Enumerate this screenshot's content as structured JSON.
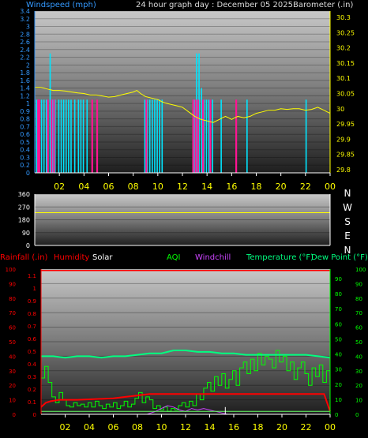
{
  "header": {
    "windspeed_label": "Windspeed (mph)",
    "title": "24 hour graph day : December 05 2025",
    "barometer_label": "Barometer (.in)"
  },
  "bottom_legend": {
    "rainfall": "Rainfall (.in)",
    "humidity": "Humidity",
    "solar": "Solar",
    "aqi": "AQI",
    "windchill": "Windchill",
    "temperature": "Temperature (°F)",
    "dewpoint": "Dew Point (°F)"
  },
  "colors": {
    "windspeed": "#00e6ff",
    "gust": "#ff1493",
    "barometer": "#ffff00",
    "direction": "#ffff00",
    "rain": "#ff0000",
    "humidity": "#ff0000",
    "solar": "#ffffff",
    "aqi": "#00ff00",
    "windchill": "#cc44ff",
    "temperature": "#00ff80",
    "dewpoint": "#66ff66",
    "axis_left_top": "#3399ff",
    "axis_right_top": "#ffff00",
    "axis_left_bottom": "#ff0000",
    "axis_right_bottom": "#00ff00"
  },
  "x_ticks": [
    "02",
    "04",
    "06",
    "08",
    "10",
    "12",
    "14",
    "16",
    "18",
    "20",
    "22",
    "00"
  ],
  "chart_data": [
    {
      "type": "bar",
      "name": "wind",
      "y_ticks_left": [
        "3.4",
        "3.2",
        "3",
        "2.8",
        "2.6",
        "2.4",
        "2.2",
        "2",
        "1.8",
        "1.6",
        "1.4",
        "1.2",
        "1",
        "0.9",
        "0.8",
        "0.7",
        "0.6",
        "0.5",
        "0.4",
        "0.3",
        "0.2",
        "0"
      ],
      "y_ticks_right": [
        "30.3",
        "30.25",
        "30.2",
        "30.15",
        "30.1",
        "30.05",
        "30",
        "29.95",
        "29.9",
        "29.85",
        "29.8"
      ],
      "ylim_left": [
        0,
        3.4
      ],
      "ylim_right": [
        29.8,
        30.3
      ],
      "xlim": [
        0,
        24
      ],
      "windspeed": [
        [
          0.1,
          1.1
        ],
        [
          0.2,
          1.1
        ],
        [
          0.5,
          1.1
        ],
        [
          0.7,
          1.1
        ],
        [
          0.9,
          1.1
        ],
        [
          1.2,
          2.3
        ],
        [
          1.4,
          1.1
        ],
        [
          1.6,
          1.1
        ],
        [
          1.9,
          1.1
        ],
        [
          2.1,
          1.1
        ],
        [
          2.3,
          1.1
        ],
        [
          2.5,
          1.1
        ],
        [
          2.7,
          1.1
        ],
        [
          2.9,
          1.1
        ],
        [
          3.2,
          1.1
        ],
        [
          3.5,
          1.1
        ],
        [
          3.7,
          1.1
        ],
        [
          3.9,
          1.1
        ],
        [
          4.2,
          1.1
        ],
        [
          8.9,
          1.1
        ],
        [
          9.1,
          1.1
        ],
        [
          9.3,
          1.1
        ],
        [
          9.5,
          1.1
        ],
        [
          9.7,
          1.1
        ],
        [
          9.9,
          1.1
        ],
        [
          10.1,
          1.1
        ],
        [
          10.3,
          1.1
        ],
        [
          12.9,
          1.1
        ],
        [
          13.1,
          2.3
        ],
        [
          13.3,
          2.3
        ],
        [
          13.5,
          1.4
        ],
        [
          13.7,
          1.1
        ],
        [
          13.9,
          1.1
        ],
        [
          14.1,
          1.1
        ],
        [
          14.4,
          1.1
        ],
        [
          15.1,
          1.1
        ],
        [
          17.2,
          1.1
        ],
        [
          22.0,
          1.1
        ]
      ],
      "gust": [
        [
          0.2,
          1.1
        ],
        [
          0.3,
          1.1
        ],
        [
          1.0,
          1.1
        ],
        [
          1.3,
          1.1
        ],
        [
          1.5,
          1.1
        ],
        [
          4.6,
          1.1
        ],
        [
          5.0,
          1.1
        ],
        [
          9.0,
          1.1
        ],
        [
          12.8,
          1.1
        ],
        [
          13.0,
          1.1
        ],
        [
          13.2,
          1.1
        ],
        [
          13.6,
          1.1
        ],
        [
          14.2,
          1.1
        ],
        [
          16.3,
          1.1
        ]
      ],
      "barometer": [
        [
          0,
          30.07
        ],
        [
          0.5,
          30.07
        ],
        [
          1,
          30.065
        ],
        [
          1.5,
          30.06
        ],
        [
          2,
          30.06
        ],
        [
          2.5,
          30.058
        ],
        [
          3,
          30.055
        ],
        [
          3.5,
          30.052
        ],
        [
          4,
          30.05
        ],
        [
          4.5,
          30.045
        ],
        [
          5,
          30.045
        ],
        [
          5.5,
          30.042
        ],
        [
          6,
          30.038
        ],
        [
          6.5,
          30.04
        ],
        [
          7,
          30.045
        ],
        [
          7.5,
          30.05
        ],
        [
          8,
          30.055
        ],
        [
          8.3,
          30.06
        ],
        [
          8.6,
          30.05
        ],
        [
          9,
          30.04
        ],
        [
          9.5,
          30.035
        ],
        [
          10,
          30.03
        ],
        [
          10.5,
          30.02
        ],
        [
          11,
          30.015
        ],
        [
          11.5,
          30.01
        ],
        [
          12,
          30.005
        ],
        [
          12.5,
          29.99
        ],
        [
          13,
          29.975
        ],
        [
          13.5,
          29.965
        ],
        [
          14,
          29.96
        ],
        [
          14.5,
          29.955
        ],
        [
          15,
          29.965
        ],
        [
          15.5,
          29.975
        ],
        [
          16,
          29.965
        ],
        [
          16.5,
          29.975
        ],
        [
          17,
          29.97
        ],
        [
          17.5,
          29.975
        ],
        [
          18,
          29.985
        ],
        [
          18.5,
          29.99
        ],
        [
          19,
          29.995
        ],
        [
          19.5,
          29.995
        ],
        [
          20,
          30
        ],
        [
          20.5,
          29.998
        ],
        [
          21,
          30
        ],
        [
          21.5,
          30
        ],
        [
          22,
          29.995
        ],
        [
          22.5,
          29.998
        ],
        [
          23,
          30.005
        ],
        [
          23.5,
          29.995
        ],
        [
          24,
          29.985
        ]
      ]
    },
    {
      "type": "line",
      "name": "direction",
      "y_ticks_left": [
        "360",
        "270",
        "180",
        "90",
        "0"
      ],
      "y_ticks_right": [
        "N",
        "W",
        "S",
        "E",
        "N"
      ],
      "ylim": [
        0,
        360
      ],
      "xlim": [
        0,
        24
      ],
      "points": [
        [
          0,
          230
        ],
        [
          24,
          230
        ]
      ]
    },
    {
      "type": "line",
      "name": "temperature",
      "y_ticks_left_a": [
        "1.1",
        "1",
        "0.9",
        "0.8",
        "0.7",
        "0.6",
        "0.5",
        "0.4",
        "0.3",
        "0.2",
        "0.1",
        "0"
      ],
      "y_ticks_left_b": [
        "100",
        "90",
        "80",
        "70",
        "60",
        "50",
        "40",
        "30",
        "20",
        "10",
        "0"
      ],
      "y_ticks_right_a": [
        "90",
        "80",
        "70",
        "60",
        "50",
        "40",
        "30",
        "20",
        "10",
        "0"
      ],
      "y_ticks_right_b": [
        "100",
        "90",
        "80",
        "70",
        "60",
        "50",
        "40",
        "30",
        "20",
        "10",
        "0"
      ],
      "ylim": [
        0,
        100
      ],
      "xlim": [
        0,
        24
      ],
      "humidity": [
        [
          0,
          5
        ],
        [
          0.4,
          8
        ],
        [
          0.8,
          9
        ],
        [
          1.5,
          10
        ],
        [
          3,
          10
        ],
        [
          6,
          11
        ],
        [
          7,
          12
        ],
        [
          8,
          13
        ],
        [
          9,
          14
        ],
        [
          10,
          14
        ],
        [
          12,
          14
        ],
        [
          16,
          14
        ],
        [
          20,
          14
        ],
        [
          23.5,
          14
        ],
        [
          24,
          2
        ]
      ],
      "humidity_top": [
        [
          0,
          99
        ],
        [
          24,
          99
        ]
      ],
      "temperature": [
        [
          0,
          40
        ],
        [
          1,
          40
        ],
        [
          2,
          39
        ],
        [
          3,
          40
        ],
        [
          4,
          40
        ],
        [
          5,
          39
        ],
        [
          6,
          40
        ],
        [
          7,
          40
        ],
        [
          8,
          41
        ],
        [
          9,
          42
        ],
        [
          10,
          42
        ],
        [
          11,
          44
        ],
        [
          12,
          44
        ],
        [
          13,
          43
        ],
        [
          14,
          43
        ],
        [
          15,
          42
        ],
        [
          16,
          42
        ],
        [
          17,
          41
        ],
        [
          18,
          41
        ],
        [
          19,
          41
        ],
        [
          20,
          41
        ],
        [
          21,
          41
        ],
        [
          22,
          41
        ],
        [
          23,
          40
        ],
        [
          24,
          39
        ]
      ],
      "aqi": [
        [
          0,
          25
        ],
        [
          0.3,
          33
        ],
        [
          0.6,
          22
        ],
        [
          0.9,
          12
        ],
        [
          1.2,
          8
        ],
        [
          1.5,
          15
        ],
        [
          1.8,
          10
        ],
        [
          2.1,
          6
        ],
        [
          2.4,
          5
        ],
        [
          2.7,
          8
        ],
        [
          3,
          6
        ],
        [
          3.3,
          7
        ],
        [
          3.6,
          5
        ],
        [
          3.9,
          8
        ],
        [
          4.2,
          5
        ],
        [
          4.5,
          9
        ],
        [
          4.8,
          6
        ],
        [
          5.1,
          4
        ],
        [
          5.4,
          7
        ],
        [
          5.7,
          5
        ],
        [
          6,
          8
        ],
        [
          6.3,
          4
        ],
        [
          6.6,
          6
        ],
        [
          6.9,
          9
        ],
        [
          7.2,
          5
        ],
        [
          7.5,
          7
        ],
        [
          7.8,
          11
        ],
        [
          8.1,
          15
        ],
        [
          8.4,
          8
        ],
        [
          8.7,
          12
        ],
        [
          9,
          10
        ],
        [
          9.3,
          4
        ],
        [
          9.6,
          6
        ],
        [
          9.9,
          3
        ],
        [
          10.2,
          5
        ],
        [
          10.5,
          2
        ],
        [
          10.8,
          4
        ],
        [
          11.1,
          3
        ],
        [
          11.4,
          6
        ],
        [
          11.7,
          8
        ],
        [
          12,
          5
        ],
        [
          12.3,
          9
        ],
        [
          12.6,
          6
        ],
        [
          12.9,
          14
        ],
        [
          13.2,
          10
        ],
        [
          13.5,
          18
        ],
        [
          13.8,
          22
        ],
        [
          14.1,
          16
        ],
        [
          14.4,
          26
        ],
        [
          14.7,
          20
        ],
        [
          15,
          28
        ],
        [
          15.3,
          18
        ],
        [
          15.6,
          24
        ],
        [
          15.9,
          30
        ],
        [
          16.2,
          20
        ],
        [
          16.5,
          32
        ],
        [
          16.8,
          36
        ],
        [
          17.1,
          28
        ],
        [
          17.4,
          38
        ],
        [
          17.7,
          30
        ],
        [
          18,
          42
        ],
        [
          18.3,
          34
        ],
        [
          18.6,
          40
        ],
        [
          18.9,
          38
        ],
        [
          19.2,
          32
        ],
        [
          19.5,
          44
        ],
        [
          19.8,
          36
        ],
        [
          20.1,
          40
        ],
        [
          20.4,
          30
        ],
        [
          20.7,
          36
        ],
        [
          21,
          24
        ],
        [
          21.3,
          32
        ],
        [
          21.6,
          36
        ],
        [
          21.9,
          28
        ],
        [
          22.2,
          20
        ],
        [
          22.5,
          32
        ],
        [
          22.8,
          26
        ],
        [
          23.1,
          34
        ],
        [
          23.4,
          22
        ],
        [
          23.7,
          30
        ],
        [
          24,
          36
        ]
      ],
      "windchill": [
        [
          8.8,
          0
        ],
        [
          9.5,
          2
        ],
        [
          10,
          4
        ],
        [
          10.5,
          6
        ],
        [
          11,
          5
        ],
        [
          11.5,
          3
        ],
        [
          12,
          2
        ],
        [
          12.5,
          4
        ],
        [
          13,
          3
        ],
        [
          13.5,
          4
        ],
        [
          14,
          3
        ],
        [
          14.5,
          2
        ],
        [
          15,
          1
        ],
        [
          15.5,
          0
        ]
      ],
      "dewpoint": [
        [
          0,
          2
        ],
        [
          24,
          2
        ]
      ],
      "solar": [
        [
          15.3,
          0
        ],
        [
          15.3,
          5
        ]
      ]
    }
  ]
}
